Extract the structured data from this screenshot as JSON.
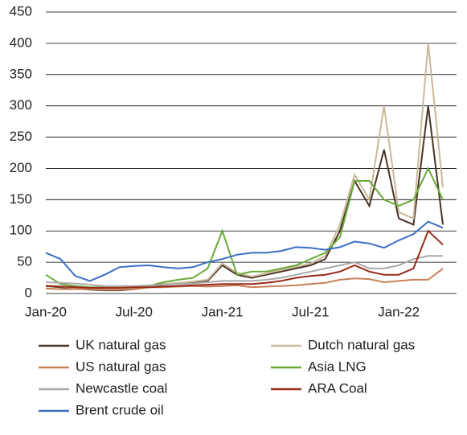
{
  "chart_data": {
    "type": "line",
    "x": [
      "2020-01",
      "2020-02",
      "2020-03",
      "2020-04",
      "2020-05",
      "2020-06",
      "2020-07",
      "2020-08",
      "2020-09",
      "2020-10",
      "2020-11",
      "2020-12",
      "2021-01",
      "2021-02",
      "2021-03",
      "2021-04",
      "2021-05",
      "2021-06",
      "2021-07",
      "2021-08",
      "2021-09",
      "2021-10",
      "2021-11",
      "2021-12",
      "2022-01",
      "2022-02",
      "2022-03",
      "2022-04"
    ],
    "xlim": [
      "2020-01",
      "2022-04"
    ],
    "xticks": [
      {
        "value": "2020-01",
        "label": "Jan-20"
      },
      {
        "value": "2020-07",
        "label": "Jul-20"
      },
      {
        "value": "2021-01",
        "label": "Jan-21"
      },
      {
        "value": "2021-07",
        "label": "Jul-21"
      },
      {
        "value": "2022-01",
        "label": "Jan-22"
      }
    ],
    "ylim": [
      0,
      450
    ],
    "yticks": [
      0,
      50,
      100,
      150,
      200,
      250,
      300,
      350,
      400,
      450
    ],
    "grid": true,
    "series": [
      {
        "name": "UK natural gas",
        "color": "#4a3323",
        "values": [
          12,
          10,
          8,
          6,
          5,
          5,
          7,
          10,
          14,
          16,
          18,
          20,
          45,
          30,
          25,
          30,
          35,
          40,
          45,
          55,
          100,
          180,
          140,
          230,
          120,
          110,
          300,
          110
        ]
      },
      {
        "name": "Dutch natural gas",
        "color": "#c9b99a",
        "values": [
          13,
          11,
          9,
          7,
          6,
          6,
          8,
          11,
          15,
          17,
          19,
          22,
          48,
          33,
          27,
          32,
          38,
          43,
          48,
          60,
          110,
          190,
          150,
          300,
          130,
          120,
          400,
          170
        ]
      },
      {
        "name": "US natural gas",
        "color": "#c8805a",
        "values": [
          8,
          7,
          7,
          7,
          6,
          6,
          7,
          10,
          10,
          11,
          12,
          11,
          12,
          13,
          10,
          11,
          12,
          13,
          15,
          17,
          22,
          24,
          23,
          18,
          20,
          22,
          22,
          40
        ]
      },
      {
        "name": "Asia LNG",
        "color": "#6aaa3a",
        "values": [
          30,
          15,
          12,
          10,
          10,
          10,
          10,
          12,
          18,
          22,
          25,
          40,
          100,
          30,
          35,
          35,
          40,
          45,
          55,
          65,
          90,
          180,
          180,
          150,
          140,
          150,
          200,
          150
        ]
      },
      {
        "name": "Newcastle coal",
        "color": "#aaaaaa",
        "values": [
          18,
          17,
          16,
          14,
          12,
          12,
          12,
          13,
          14,
          15,
          16,
          18,
          20,
          20,
          20,
          22,
          25,
          30,
          35,
          40,
          45,
          50,
          40,
          40,
          45,
          55,
          60,
          60
        ]
      },
      {
        "name": "ARA Coal",
        "color": "#9a2a1a",
        "values": [
          12,
          11,
          10,
          9,
          9,
          9,
          10,
          10,
          11,
          12,
          13,
          14,
          15,
          15,
          15,
          17,
          20,
          25,
          28,
          30,
          35,
          45,
          35,
          30,
          30,
          40,
          100,
          78
        ]
      },
      {
        "name": "Brent crude oil",
        "color": "#3a6fc4",
        "values": [
          65,
          55,
          28,
          20,
          30,
          42,
          44,
          45,
          42,
          40,
          42,
          50,
          55,
          62,
          65,
          65,
          68,
          74,
          73,
          70,
          74,
          83,
          80,
          73,
          85,
          95,
          115,
          105
        ]
      }
    ]
  }
}
